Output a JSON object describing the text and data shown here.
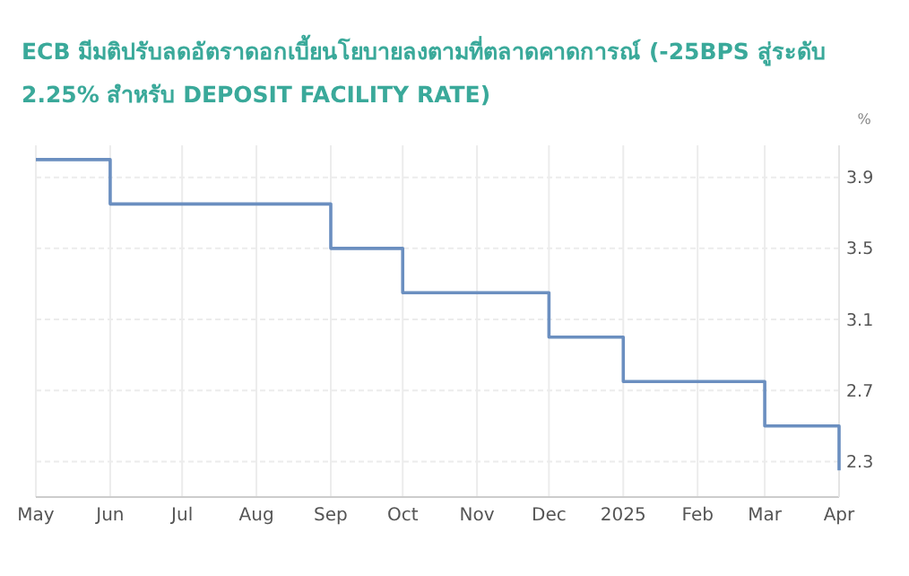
{
  "chart_data": {
    "type": "step",
    "title": "ECB มีมติปรับลดอัตราดอกเบี้ยนโยบายลงตามที่ตลาดคาดการณ์ (-25BPS สู่ระดับ 2.25% สำหรับ DEPOSIT FACILITY RATE)",
    "ylabel": "%",
    "x": [
      "2024-05",
      "2024-06",
      "2024-07",
      "2024-08",
      "2024-09",
      "2024-10",
      "2024-11",
      "2024-12",
      "2025-01",
      "2025-02",
      "2025-03",
      "2025-04"
    ],
    "series": [
      {
        "color": "#6b8fc0",
        "values": [
          4.0,
          3.75,
          3.75,
          3.75,
          3.5,
          3.25,
          3.25,
          3.0,
          2.75,
          2.75,
          2.5,
          2.25
        ]
      }
    ],
    "xlim": [
      "2024-05",
      "2025-04"
    ],
    "xticks": [
      {
        "value": "2024-05",
        "label": "May"
      },
      {
        "value": "2024-06",
        "label": "Jun"
      },
      {
        "value": "2024-07",
        "label": "Jul"
      },
      {
        "value": "2024-08",
        "label": "Aug"
      },
      {
        "value": "2024-09",
        "label": "Sep"
      },
      {
        "value": "2024-10",
        "label": "Oct"
      },
      {
        "value": "2024-11",
        "label": "Nov"
      },
      {
        "value": "2024-12",
        "label": "Dec"
      },
      {
        "value": "2025-01",
        "label": "2025"
      },
      {
        "value": "2025-02",
        "label": "Feb"
      },
      {
        "value": "2025-03",
        "label": "Mar"
      },
      {
        "value": "2025-04",
        "label": "Apr"
      }
    ],
    "ylim": [
      2.1,
      4.08
    ],
    "yticks": [
      2.3,
      2.7,
      3.1,
      3.5,
      3.9
    ],
    "grid": true,
    "marker": "none",
    "line_style": "solid"
  }
}
